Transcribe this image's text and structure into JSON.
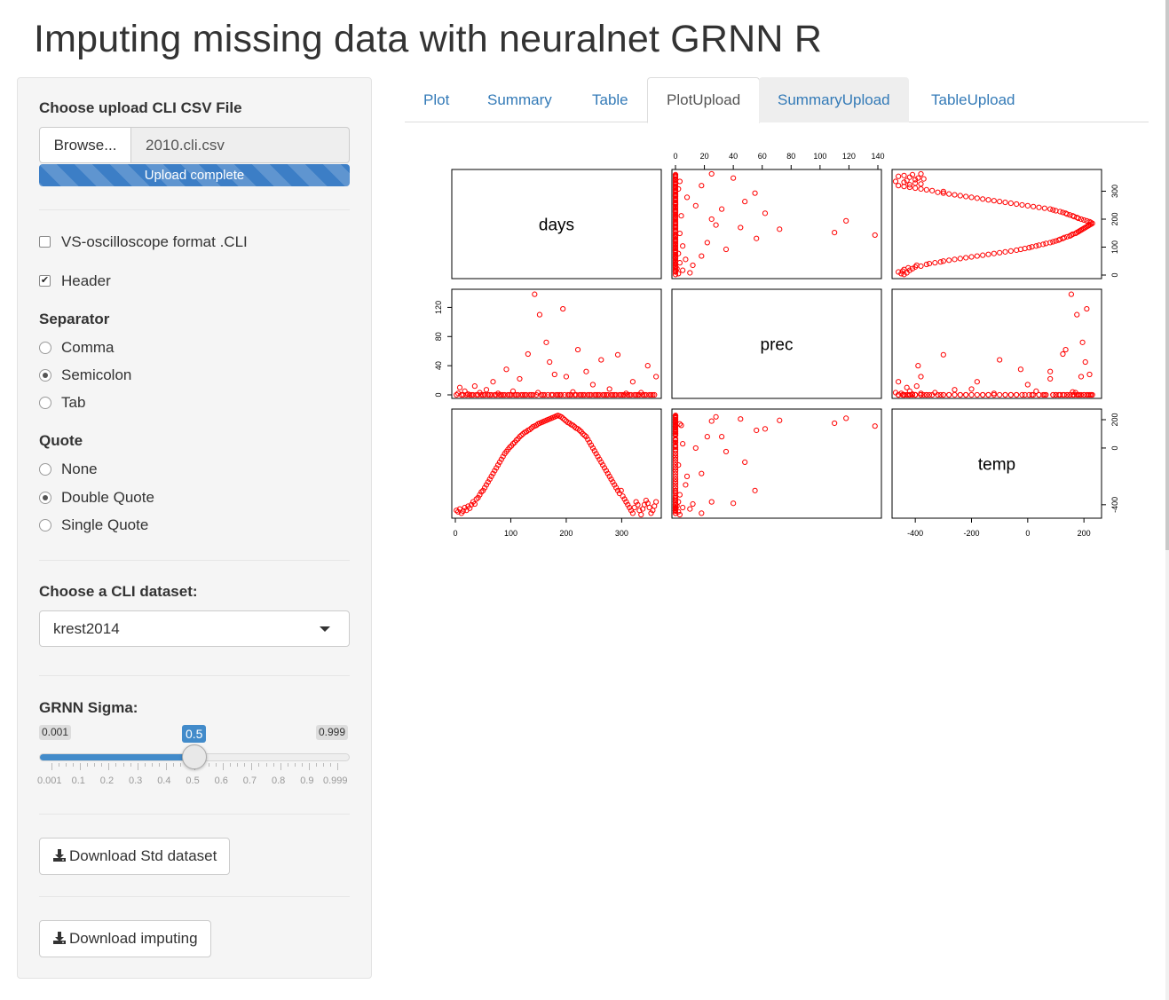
{
  "title": "Imputing missing data with neuralnet GRNN R",
  "sidebar": {
    "upload_label": "Choose upload CLI CSV File",
    "browse_label": "Browse...",
    "file_name": "2010.cli.csv",
    "progress_text": "Upload complete",
    "progress_fraction": 1.0,
    "vs_checkbox": {
      "label": "VS-oscilloscope format .CLI",
      "checked": false
    },
    "header_checkbox": {
      "label": "Header",
      "checked": true
    },
    "separator": {
      "label": "Separator",
      "options": [
        "Comma",
        "Semicolon",
        "Tab"
      ],
      "selected": "Semicolon"
    },
    "quote": {
      "label": "Quote",
      "options": [
        "None",
        "Double Quote",
        "Single Quote"
      ],
      "selected": "Double Quote"
    },
    "dataset": {
      "label": "Choose a CLI dataset:",
      "value": "krest2014"
    },
    "sigma": {
      "label": "GRNN Sigma:",
      "min": 0.001,
      "max": 0.999,
      "value": 0.5,
      "min_label": "0.001",
      "max_label": "0.999",
      "value_label": "0.5",
      "tick_labels": [
        "0.001",
        "0.1",
        "0.2",
        "0.3",
        "0.4",
        "0.5",
        "0.6",
        "0.7",
        "0.8",
        "0.9",
        "0.999"
      ]
    },
    "download_std_label": "Download Std dataset",
    "download_imputing_label": "Download imputing",
    "download_icon": "download-icon"
  },
  "tabs": [
    {
      "label": "Plot",
      "active": false
    },
    {
      "label": "Summary",
      "active": false
    },
    {
      "label": "Table",
      "active": false
    },
    {
      "label": "PlotUpload",
      "active": true
    },
    {
      "label": "SummaryUpload",
      "active": false,
      "hover": true
    },
    {
      "label": "TableUpload",
      "active": false
    }
  ],
  "colors": {
    "accent": "#428bca",
    "link": "#337ab7",
    "point": "#ff0000",
    "sidebar_bg": "#f5f5f5"
  },
  "chart_data": {
    "type": "scatter",
    "subtype": "pairs-matrix",
    "variables": [
      "days",
      "prec",
      "temp"
    ],
    "ranges": {
      "days": [
        0,
        365
      ],
      "prec": [
        0,
        140
      ],
      "temp": [
        -470,
        250
      ]
    },
    "ticks": {
      "days": [
        "0",
        "100",
        "200",
        "300"
      ],
      "prec": [
        "0",
        "20",
        "40",
        "60",
        "80",
        "100",
        "120",
        "140"
      ],
      "prec_left": [
        "0",
        "40",
        "80",
        "120"
      ],
      "temp": [
        "-400",
        "-200",
        "0",
        "200"
      ],
      "days_right": [
        "0",
        "100",
        "200",
        "300"
      ],
      "temp_right": [
        "-400",
        "0",
        "200"
      ]
    },
    "point_color": "#ff0000",
    "points": {
      "days": [
        2,
        5,
        8,
        11,
        14,
        17,
        20,
        23,
        26,
        29,
        32,
        35,
        38,
        41,
        44,
        47,
        50,
        53,
        56,
        59,
        62,
        65,
        68,
        71,
        74,
        77,
        80,
        83,
        86,
        89,
        92,
        95,
        98,
        101,
        104,
        107,
        110,
        113,
        116,
        119,
        122,
        125,
        128,
        131,
        134,
        137,
        140,
        143,
        146,
        149,
        152,
        155,
        158,
        161,
        164,
        167,
        170,
        173,
        176,
        179,
        182,
        185,
        188,
        191,
        194,
        197,
        200,
        203,
        206,
        209,
        212,
        215,
        218,
        221,
        224,
        227,
        230,
        233,
        236,
        239,
        242,
        245,
        248,
        251,
        254,
        257,
        260,
        263,
        266,
        269,
        272,
        275,
        278,
        281,
        284,
        287,
        290,
        293,
        296,
        299,
        302,
        305,
        308,
        311,
        314,
        317,
        320,
        323,
        326,
        329,
        332,
        335,
        338,
        341,
        344,
        347,
        350,
        353,
        356,
        359,
        362
      ],
      "prec": [
        0,
        2,
        10,
        0,
        0,
        5,
        0,
        1,
        0,
        0,
        0,
        12,
        0,
        0,
        3,
        0,
        0,
        0,
        7,
        0,
        0,
        0,
        18,
        0,
        0,
        2,
        0,
        0,
        0,
        0,
        35,
        0,
        0,
        0,
        5,
        0,
        0,
        0,
        22,
        0,
        0,
        0,
        0,
        56,
        0,
        0,
        0,
        138,
        0,
        3,
        110,
        0,
        0,
        0,
        72,
        0,
        45,
        0,
        0,
        28,
        0,
        0,
        0,
        0,
        118,
        0,
        25,
        0,
        0,
        0,
        4,
        0,
        0,
        62,
        0,
        0,
        0,
        0,
        32,
        0,
        0,
        0,
        14,
        0,
        0,
        0,
        0,
        48,
        0,
        0,
        0,
        0,
        8,
        0,
        0,
        0,
        0,
        55,
        0,
        0,
        0,
        0,
        2,
        0,
        0,
        0,
        18,
        0,
        0,
        0,
        0,
        3,
        0,
        0,
        0,
        40,
        0,
        0,
        0,
        0,
        25
      ],
      "temp": [
        -440,
        -450,
        -430,
        -460,
        -445,
        -420,
        -440,
        -410,
        -425,
        -400,
        -380,
        -395,
        -360,
        -350,
        -330,
        -310,
        -300,
        -280,
        -260,
        -240,
        -220,
        -200,
        -180,
        -160,
        -140,
        -120,
        -100,
        -80,
        -60,
        -40,
        -25,
        -10,
        5,
        15,
        30,
        40,
        55,
        65,
        80,
        90,
        100,
        110,
        115,
        125,
        130,
        140,
        150,
        155,
        160,
        170,
        175,
        180,
        185,
        190,
        195,
        200,
        205,
        210,
        215,
        220,
        225,
        230,
        225,
        220,
        210,
        200,
        190,
        180,
        175,
        165,
        160,
        150,
        140,
        135,
        125,
        115,
        100,
        90,
        80,
        60,
        40,
        20,
        0,
        -20,
        -40,
        -60,
        -80,
        -100,
        -120,
        -140,
        -160,
        -180,
        -200,
        -220,
        -240,
        -260,
        -280,
        -300,
        -320,
        -300,
        -340,
        -360,
        -380,
        -400,
        -420,
        -440,
        -460,
        -420,
        -380,
        -400,
        -440,
        -470,
        -430,
        -400,
        -370,
        -390,
        -420,
        -460,
        -440,
        -410,
        -380
      ]
    }
  }
}
